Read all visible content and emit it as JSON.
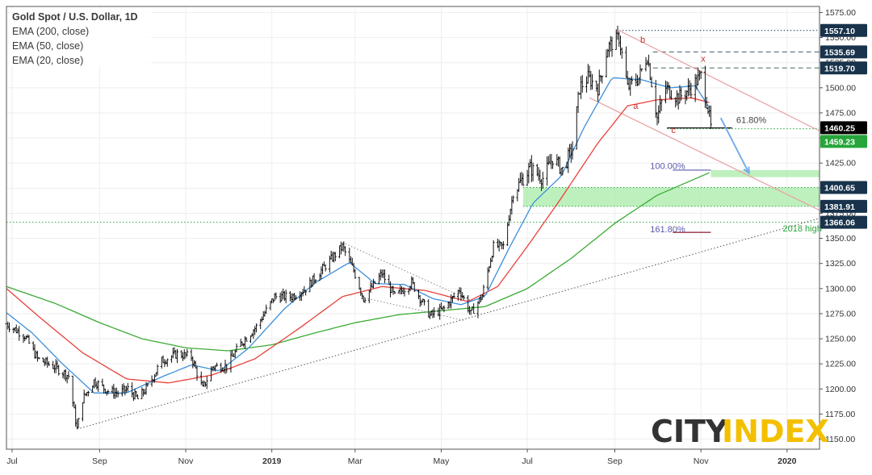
{
  "legend": {
    "title": "Gold Spot / U.S. Dollar, 1D",
    "ema200": "EMA (200, close)",
    "ema50": "EMA (50, close)",
    "ema20": "EMA (20, close)"
  },
  "logo": {
    "part1": "CITY",
    "part2": "INDEX"
  },
  "colors": {
    "ema200": "#3aaa35",
    "ema50": "#e8403a",
    "ema20": "#3b8fdb",
    "price_bars": "#111111",
    "zone_fill": "#a8eba8",
    "channel": "#e8a0a0",
    "trendline": "#555555",
    "tag_dark": "#18334b",
    "tag_green": "#26a63a",
    "tag_black": "#000000",
    "logo_grey": "#333333",
    "logo_yellow": "#f3c000"
  },
  "chart_data": {
    "type": "ohlc",
    "title": "Gold Spot / U.S. Dollar, 1D",
    "y_ticks": [
      1150,
      1175,
      1200,
      1225,
      1250,
      1275,
      1300,
      1325,
      1350,
      1375,
      1400,
      1425,
      1450,
      1475,
      1500,
      1525,
      1550,
      1575
    ],
    "y_tick_labels": [
      "1150.00",
      "1175.00",
      "1200.00",
      "1225.00",
      "1250.00",
      "1275.00",
      "1300.00",
      "1325.00",
      "1350.00",
      "1375.00",
      "1400.00",
      "1425.00",
      "1450.00",
      "1475.00",
      "1500.00",
      "1525.00",
      "1550.00",
      "1575.00"
    ],
    "ylim": [
      1140,
      1581
    ],
    "x_labels": [
      {
        "label": "Jul",
        "date": "2018-07-01"
      },
      {
        "label": "Sep",
        "date": "2018-09-01"
      },
      {
        "label": "Nov",
        "date": "2018-11-01"
      },
      {
        "label": "2019",
        "date": "2019-01-01",
        "bold": true
      },
      {
        "label": "Mar",
        "date": "2019-03-01"
      },
      {
        "label": "May",
        "date": "2019-05-01"
      },
      {
        "label": "Jul",
        "date": "2019-07-01"
      },
      {
        "label": "Sep",
        "date": "2019-09-01"
      },
      {
        "label": "Nov",
        "date": "2019-11-01"
      },
      {
        "label": "2020",
        "date": "2020-01-01",
        "bold": true
      }
    ],
    "xlim": [
      "2018-06-27",
      "2020-01-24"
    ],
    "price_path": [
      [
        "2018-06-27",
        1265
      ],
      [
        "2018-07-10",
        1253
      ],
      [
        "2018-07-19",
        1230
      ],
      [
        "2018-07-31",
        1222
      ],
      [
        "2018-08-10",
        1213
      ],
      [
        "2018-08-16",
        1160
      ],
      [
        "2018-08-20",
        1190
      ],
      [
        "2018-08-28",
        1208
      ],
      [
        "2018-09-07",
        1198
      ],
      [
        "2018-09-14",
        1196
      ],
      [
        "2018-09-21",
        1200
      ],
      [
        "2018-09-28",
        1190
      ],
      [
        "2018-10-05",
        1202
      ],
      [
        "2018-10-15",
        1228
      ],
      [
        "2018-10-26",
        1235
      ],
      [
        "2018-11-05",
        1232
      ],
      [
        "2018-11-13",
        1200
      ],
      [
        "2018-11-20",
        1222
      ],
      [
        "2018-11-30",
        1223
      ],
      [
        "2018-12-10",
        1245
      ],
      [
        "2018-12-21",
        1262
      ],
      [
        "2019-01-03",
        1292
      ],
      [
        "2019-01-15",
        1292
      ],
      [
        "2019-01-25",
        1300
      ],
      [
        "2019-02-05",
        1318
      ],
      [
        "2019-02-20",
        1342
      ],
      [
        "2019-02-28",
        1318
      ],
      [
        "2019-03-07",
        1290
      ],
      [
        "2019-03-20",
        1315
      ],
      [
        "2019-03-29",
        1292
      ],
      [
        "2019-04-10",
        1306
      ],
      [
        "2019-04-23",
        1273
      ],
      [
        "2019-05-03",
        1280
      ],
      [
        "2019-05-14",
        1299
      ],
      [
        "2019-05-22",
        1275
      ],
      [
        "2019-05-30",
        1293
      ],
      [
        "2019-06-07",
        1342
      ],
      [
        "2019-06-14",
        1342
      ],
      [
        "2019-06-21",
        1395
      ],
      [
        "2019-06-28",
        1410
      ],
      [
        "2019-07-03",
        1420
      ],
      [
        "2019-07-12",
        1410
      ],
      [
        "2019-07-19",
        1430
      ],
      [
        "2019-07-26",
        1418
      ],
      [
        "2019-08-02",
        1440
      ],
      [
        "2019-08-07",
        1500
      ],
      [
        "2019-08-13",
        1510
      ],
      [
        "2019-08-20",
        1500
      ],
      [
        "2019-08-27",
        1540
      ],
      [
        "2019-09-04",
        1550
      ],
      [
        "2019-09-10",
        1500
      ],
      [
        "2019-09-18",
        1510
      ],
      [
        "2019-09-24",
        1532
      ],
      [
        "2019-10-01",
        1470
      ],
      [
        "2019-10-07",
        1500
      ],
      [
        "2019-10-16",
        1490
      ],
      [
        "2019-10-25",
        1500
      ],
      [
        "2019-11-01",
        1512
      ],
      [
        "2019-11-06",
        1480
      ],
      [
        "2019-11-08",
        1460
      ]
    ],
    "ema20_path": [
      [
        "2018-06-27",
        1276
      ],
      [
        "2018-07-15",
        1256
      ],
      [
        "2018-08-05",
        1226
      ],
      [
        "2018-08-28",
        1196
      ],
      [
        "2018-09-20",
        1196
      ],
      [
        "2018-10-15",
        1212
      ],
      [
        "2018-11-05",
        1224
      ],
      [
        "2018-11-25",
        1218
      ],
      [
        "2018-12-15",
        1240
      ],
      [
        "2019-01-10",
        1280
      ],
      [
        "2019-02-01",
        1306
      ],
      [
        "2019-02-25",
        1326
      ],
      [
        "2019-03-15",
        1305
      ],
      [
        "2019-04-05",
        1304
      ],
      [
        "2019-04-25",
        1290
      ],
      [
        "2019-05-15",
        1284
      ],
      [
        "2019-06-01",
        1292
      ],
      [
        "2019-06-18",
        1340
      ],
      [
        "2019-07-05",
        1385
      ],
      [
        "2019-07-25",
        1412
      ],
      [
        "2019-08-10",
        1460
      ],
      [
        "2019-08-30",
        1510
      ],
      [
        "2019-09-20",
        1508
      ],
      [
        "2019-10-10",
        1500
      ],
      [
        "2019-10-28",
        1502
      ],
      [
        "2019-11-08",
        1478
      ]
    ],
    "ema50_path": [
      [
        "2018-06-27",
        1300
      ],
      [
        "2018-07-20",
        1272
      ],
      [
        "2018-08-20",
        1236
      ],
      [
        "2018-09-20",
        1210
      ],
      [
        "2018-10-20",
        1206
      ],
      [
        "2018-11-20",
        1214
      ],
      [
        "2018-12-20",
        1230
      ],
      [
        "2019-01-20",
        1260
      ],
      [
        "2019-02-20",
        1292
      ],
      [
        "2019-03-20",
        1302
      ],
      [
        "2019-04-20",
        1298
      ],
      [
        "2019-05-20",
        1287
      ],
      [
        "2019-06-10",
        1302
      ],
      [
        "2019-07-01",
        1342
      ],
      [
        "2019-07-25",
        1390
      ],
      [
        "2019-08-20",
        1445
      ],
      [
        "2019-09-10",
        1482
      ],
      [
        "2019-10-01",
        1488
      ],
      [
        "2019-10-25",
        1490
      ],
      [
        "2019-11-08",
        1485
      ]
    ],
    "ema200_path": [
      [
        "2018-06-27",
        1302
      ],
      [
        "2018-08-01",
        1285
      ],
      [
        "2018-09-01",
        1266
      ],
      [
        "2018-10-01",
        1250
      ],
      [
        "2018-11-01",
        1241
      ],
      [
        "2018-12-01",
        1238
      ],
      [
        "2019-01-01",
        1244
      ],
      [
        "2019-02-01",
        1256
      ],
      [
        "2019-03-01",
        1266
      ],
      [
        "2019-04-01",
        1274
      ],
      [
        "2019-05-01",
        1278
      ],
      [
        "2019-06-01",
        1282
      ],
      [
        "2019-07-01",
        1300
      ],
      [
        "2019-08-01",
        1330
      ],
      [
        "2019-09-01",
        1365
      ],
      [
        "2019-10-01",
        1393
      ],
      [
        "2019-11-08",
        1416
      ]
    ],
    "trendline": [
      [
        "2018-08-16",
        1160
      ],
      [
        "2020-01-24",
        1370
      ]
    ],
    "wedge_lines": [
      [
        [
          "2019-02-20",
          1346
        ],
        [
          "2019-05-22",
          1288
        ]
      ],
      [
        [
          "2019-03-10",
          1290
        ],
        [
          "2019-05-18",
          1268
        ]
      ]
    ],
    "channel_lines": [
      [
        [
          "2019-09-04",
          1557
        ],
        [
          "2020-01-24",
          1457
        ]
      ],
      [
        [
          "2019-08-14",
          1490
        ],
        [
          "2020-01-24",
          1378
        ]
      ]
    ],
    "horizontal_levels": [
      {
        "price": 1557.1,
        "label": "1557.10",
        "style": "dotted",
        "color": "#18334b"
      },
      {
        "price": 1535.69,
        "label": "1535.69",
        "style": "dashed",
        "color": "#4a5a6a"
      },
      {
        "price": 1519.7,
        "label": "1519.70",
        "style": "dashed",
        "color": "#4a6a5a"
      },
      {
        "price": 1459.23,
        "label": "1459.23",
        "style": "dotted",
        "color": "#26a63a"
      },
      {
        "price": 1400.65,
        "label": "1400.65",
        "style": "dotted",
        "color": "#26a63a"
      },
      {
        "price": 1381.91,
        "label": "1381.91",
        "style": "dotted",
        "color": "#26a63a"
      },
      {
        "price": 1366.06,
        "label": "1366.06",
        "style": "dotted",
        "color": "#26a63a"
      }
    ],
    "price_tags": [
      {
        "price": 1557.1,
        "label": "1557.10",
        "color": "#18334b"
      },
      {
        "price": 1535.69,
        "label": "1535.69",
        "color": "#18334b"
      },
      {
        "price": 1519.7,
        "label": "1519.70",
        "color": "#18334b"
      },
      {
        "price": 1460.25,
        "label": "1460.25",
        "color": "#000000"
      },
      {
        "price": 1459.23,
        "label": "1459.23",
        "color": "#26a63a"
      },
      {
        "price": 1400.65,
        "label": "1400.65",
        "color": "#18334b"
      },
      {
        "price": 1381.91,
        "label": "1381.91",
        "color": "#18334b"
      },
      {
        "price": 1366.06,
        "label": "1366.06",
        "color": "#18334b"
      }
    ],
    "zones": [
      {
        "from": 1381.91,
        "to": 1400.65,
        "start": "2019-06-28"
      },
      {
        "from": 1411,
        "to": 1418,
        "start": "2019-11-08"
      }
    ],
    "annotations": [
      {
        "text": "b",
        "date": "2019-09-19",
        "price": 1545,
        "color": "#c03030"
      },
      {
        "text": "x",
        "date": "2019-11-01",
        "price": 1526,
        "color": "#c03030"
      },
      {
        "text": "a",
        "date": "2019-09-14",
        "price": 1479,
        "color": "#c03030"
      },
      {
        "text": "c",
        "date": "2019-10-11",
        "price": 1455,
        "color": "#c03030"
      },
      {
        "text": "61.80%",
        "date": "2019-11-26",
        "price": 1465,
        "color": "#444444"
      },
      {
        "text": "100.00%",
        "date": "2019-09-26",
        "price": 1419,
        "color": "#5a5aaa"
      },
      {
        "text": "161.80%",
        "date": "2019-09-26",
        "price": 1356,
        "color": "#5a5aaa"
      },
      {
        "text": "2018 high",
        "date": "2019-12-29",
        "price": 1357,
        "color": "#26a63a"
      }
    ],
    "fib_lines": [
      {
        "price": 1460,
        "from": "2019-10-08",
        "to": "2019-11-23",
        "color": "#111111"
      },
      {
        "price": 1418,
        "from": "2019-10-12",
        "to": "2019-11-08",
        "color": "#5a5aaa"
      },
      {
        "price": 1356,
        "from": "2019-10-12",
        "to": "2019-11-08",
        "color": "#8a1c2a"
      }
    ],
    "arrow": {
      "from": [
        "2019-11-15",
        1470
      ],
      "to": [
        "2019-12-05",
        1415
      ],
      "color": "#78aee8"
    }
  }
}
